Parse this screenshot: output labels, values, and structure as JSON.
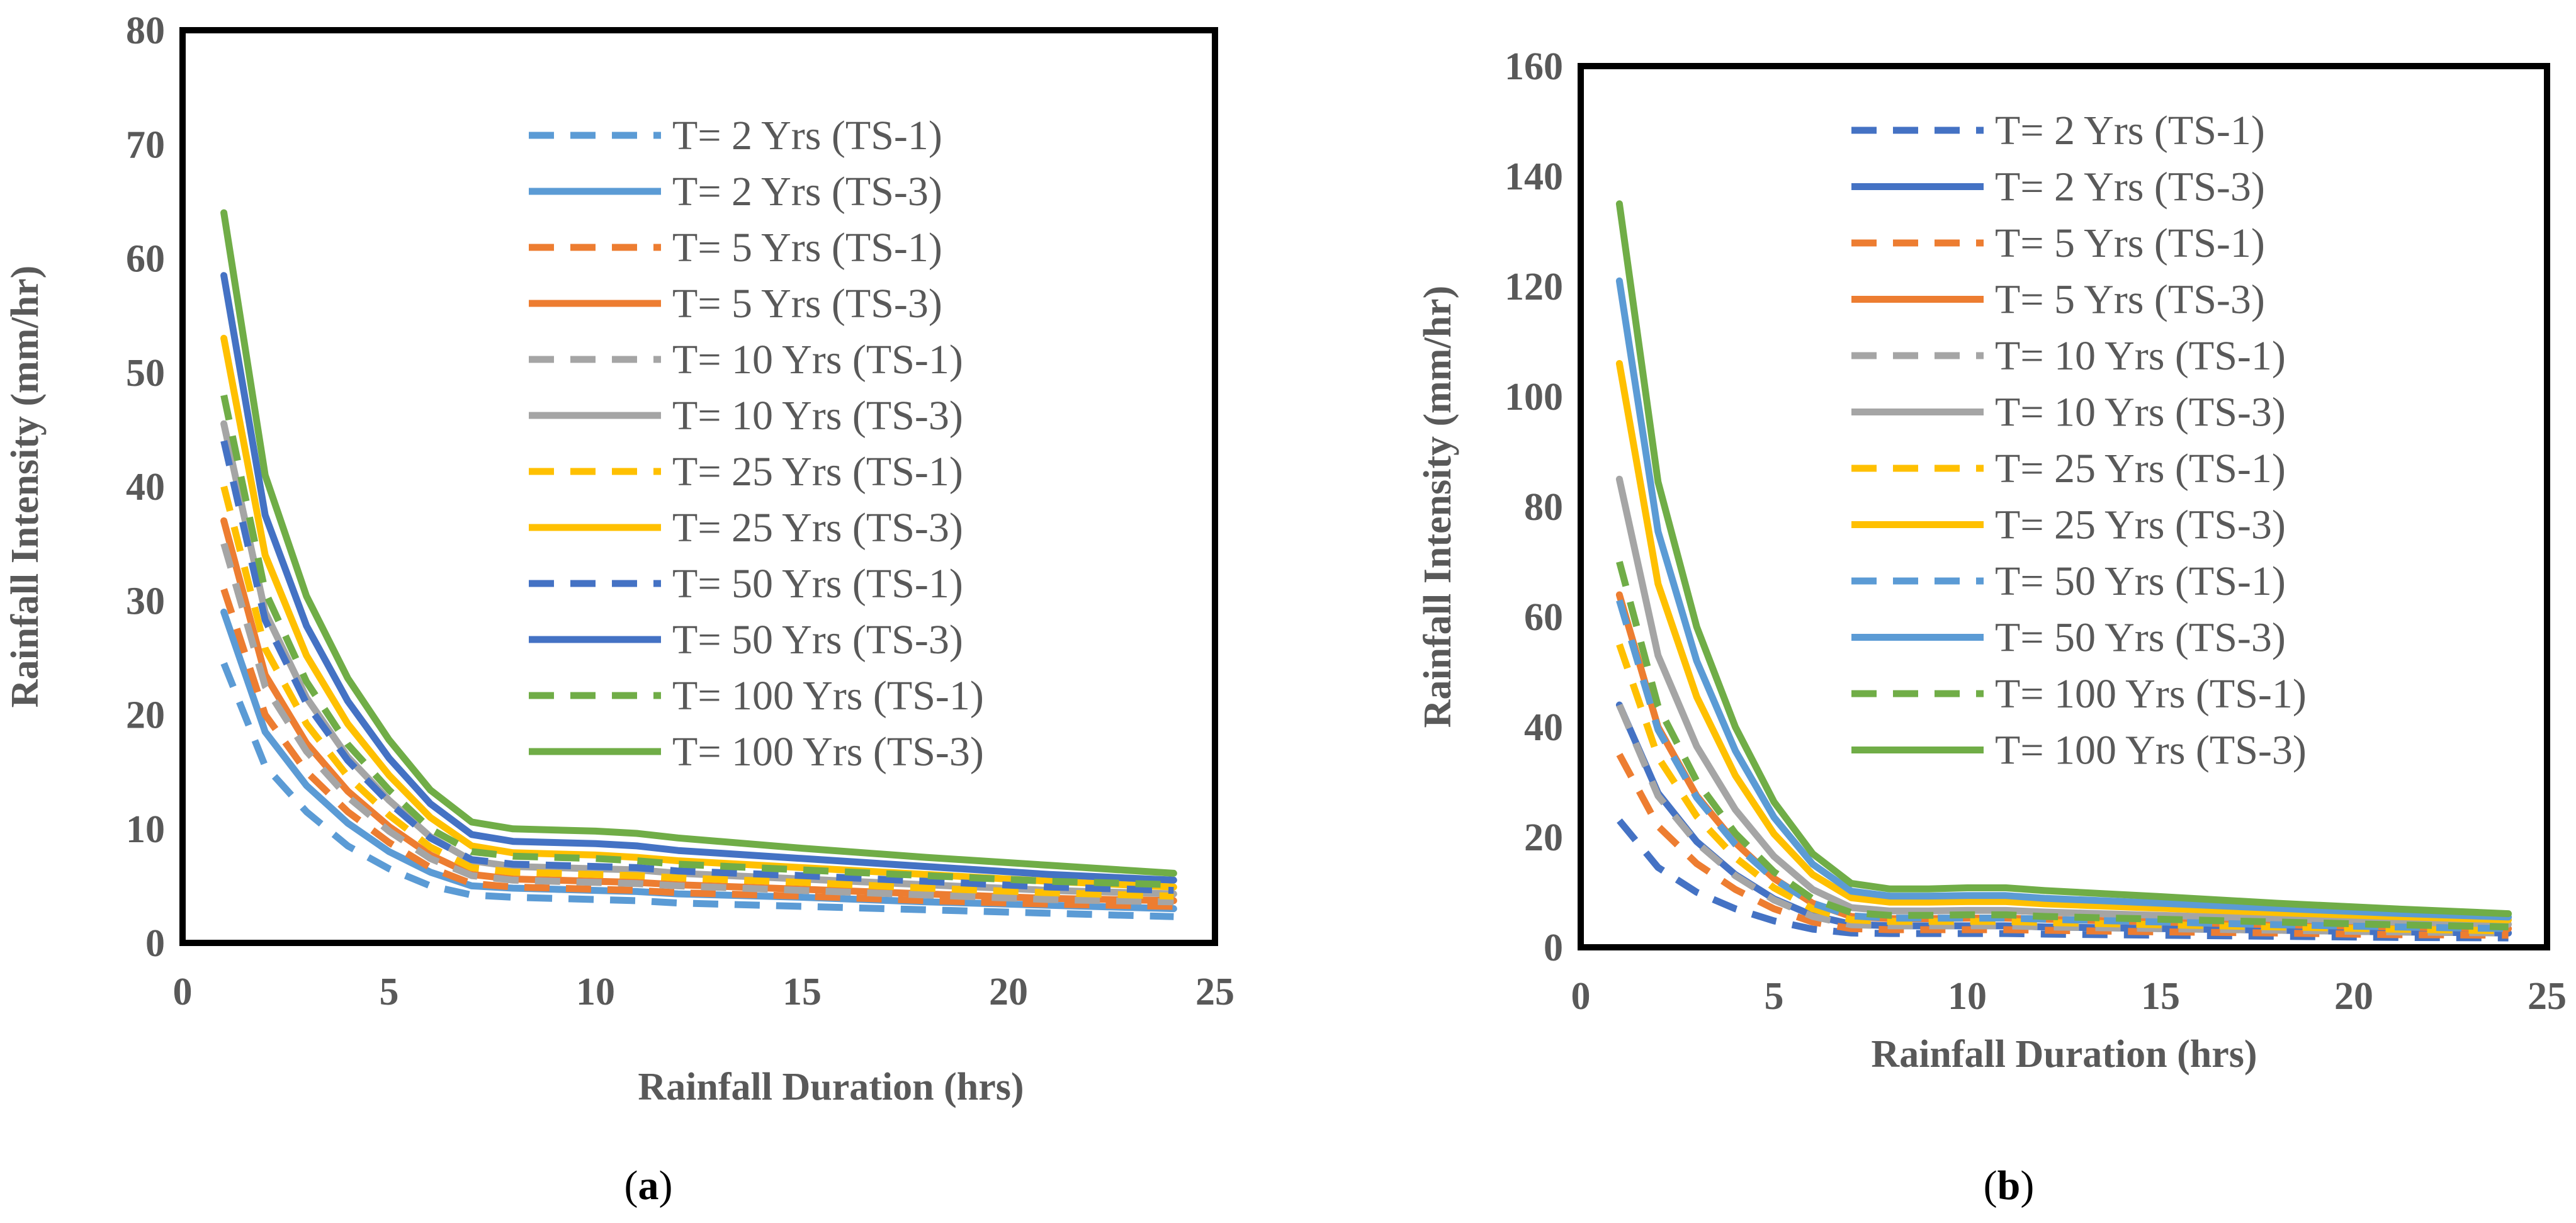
{
  "chart_data": [
    {
      "type": "line",
      "caption": "(a)",
      "caption_letter": "a",
      "title": "",
      "xlabel": "Rainfall Duration (hrs)",
      "ylabel": "Rainfall Intensity (mm/hr)",
      "xlim": [
        0,
        25
      ],
      "ylim": [
        0,
        80
      ],
      "x_ticks": [
        "0",
        "5",
        "10",
        "15",
        "20",
        "25"
      ],
      "y_ticks": [
        "0",
        "10",
        "20",
        "30",
        "40",
        "50",
        "60",
        "70",
        "80"
      ],
      "grid": false,
      "legend_position": "top-right",
      "x": [
        1,
        2,
        3,
        4,
        5,
        6,
        7,
        8,
        9,
        10,
        11,
        12,
        15,
        18,
        21,
        24
      ],
      "series": [
        {
          "name": "T= 2 Yrs (TS-1)",
          "color": "#5B9BD5",
          "dash": "dashed",
          "values": [
            24.5,
            15.5,
            11.5,
            8.5,
            6.5,
            5.0,
            4.2,
            4.0,
            3.9,
            3.8,
            3.7,
            3.5,
            3.2,
            2.9,
            2.6,
            2.3
          ]
        },
        {
          "name": "T= 2 Yrs (TS-3)",
          "color": "#5B9BD5",
          "dash": "solid",
          "values": [
            29.0,
            18.5,
            13.8,
            10.5,
            8.0,
            6.2,
            5.0,
            4.8,
            4.7,
            4.6,
            4.5,
            4.3,
            4.0,
            3.6,
            3.3,
            3.0
          ]
        },
        {
          "name": "T= 5 Yrs (TS-1)",
          "color": "#ED7D31",
          "dash": "dashed",
          "values": [
            31.0,
            20.0,
            15.0,
            11.5,
            8.8,
            6.6,
            5.2,
            4.9,
            4.8,
            4.7,
            4.6,
            4.4,
            4.1,
            3.7,
            3.4,
            3.2
          ]
        },
        {
          "name": "T= 5 Yrs (TS-3)",
          "color": "#ED7D31",
          "dash": "solid",
          "values": [
            37.0,
            23.5,
            17.5,
            13.3,
            10.2,
            7.7,
            6.0,
            5.6,
            5.5,
            5.4,
            5.3,
            5.1,
            4.7,
            4.3,
            3.9,
            3.7
          ]
        },
        {
          "name": "T= 10 Yrs (TS-1)",
          "color": "#A5A5A5",
          "dash": "dashed",
          "values": [
            35.0,
            22.5,
            16.8,
            12.8,
            9.8,
            7.4,
            5.9,
            5.5,
            5.4,
            5.3,
            5.2,
            5.0,
            4.6,
            4.2,
            3.8,
            3.6
          ]
        },
        {
          "name": "T= 10 Yrs (TS-3)",
          "color": "#A5A5A5",
          "dash": "solid",
          "values": [
            45.5,
            29.0,
            21.5,
            16.3,
            12.5,
            9.3,
            7.2,
            6.7,
            6.6,
            6.5,
            6.4,
            6.1,
            5.6,
            5.1,
            4.6,
            4.3
          ]
        },
        {
          "name": "T= 25 Yrs (TS-1)",
          "color": "#FFC000",
          "dash": "dashed",
          "values": [
            40.0,
            25.8,
            19.2,
            14.6,
            11.2,
            8.4,
            6.6,
            6.2,
            6.1,
            6.0,
            5.9,
            5.7,
            5.3,
            4.8,
            4.4,
            4.1
          ]
        },
        {
          "name": "T= 25 Yrs (TS-3)",
          "color": "#FFC000",
          "dash": "solid",
          "values": [
            53.0,
            34.0,
            25.2,
            19.2,
            14.7,
            11.0,
            8.5,
            7.9,
            7.8,
            7.7,
            7.5,
            7.2,
            6.6,
            6.0,
            5.4,
            4.9
          ]
        },
        {
          "name": "T= 50 Yrs (TS-1)",
          "color": "#4472C4",
          "dash": "dashed",
          "values": [
            44.0,
            28.3,
            21.0,
            16.0,
            12.3,
            9.2,
            7.3,
            6.9,
            6.8,
            6.7,
            6.6,
            6.3,
            5.9,
            5.4,
            4.9,
            4.6
          ]
        },
        {
          "name": "T= 50 Yrs (TS-3)",
          "color": "#4472C4",
          "dash": "solid",
          "values": [
            58.5,
            37.5,
            27.8,
            21.2,
            16.2,
            12.2,
            9.5,
            8.9,
            8.8,
            8.7,
            8.5,
            8.1,
            7.4,
            6.7,
            6.0,
            5.5
          ]
        },
        {
          "name": "T= 100 Yrs (TS-1)",
          "color": "#70AD47",
          "dash": "dashed",
          "values": [
            48.0,
            30.8,
            22.9,
            17.4,
            13.4,
            10.0,
            8.0,
            7.6,
            7.5,
            7.4,
            7.2,
            6.9,
            6.4,
            5.9,
            5.4,
            5.1
          ]
        },
        {
          "name": "T= 100 Yrs (TS-3)",
          "color": "#70AD47",
          "dash": "solid",
          "values": [
            64.0,
            41.0,
            30.4,
            23.2,
            17.8,
            13.4,
            10.6,
            10.0,
            9.9,
            9.8,
            9.6,
            9.2,
            8.3,
            7.5,
            6.8,
            6.1
          ]
        }
      ]
    },
    {
      "type": "line",
      "caption": "(b)",
      "caption_letter": "b",
      "title": "",
      "xlabel": "Rainfall Duration (hrs)",
      "ylabel": "Rainfall Intensity (mm/hr)",
      "xlim": [
        0,
        25
      ],
      "ylim": [
        0,
        160
      ],
      "x_ticks": [
        "0",
        "5",
        "10",
        "15",
        "20",
        "25"
      ],
      "y_ticks": [
        "0",
        "20",
        "40",
        "60",
        "80",
        "100",
        "120",
        "140",
        "160"
      ],
      "grid": false,
      "legend_position": "top-right",
      "x": [
        1,
        2,
        3,
        4,
        5,
        6,
        7,
        8,
        9,
        10,
        11,
        12,
        15,
        18,
        21,
        24
      ],
      "series": [
        {
          "name": "T= 2 Yrs (TS-1)",
          "color": "#4472C4",
          "dash": "dashed",
          "values": [
            23.0,
            14.5,
            10.0,
            7.0,
            4.8,
            3.3,
            2.6,
            2.5,
            2.5,
            2.5,
            2.5,
            2.4,
            2.2,
            2.0,
            1.8,
            1.7
          ]
        },
        {
          "name": "T= 2 Yrs (TS-3)",
          "color": "#4472C4",
          "dash": "solid",
          "values": [
            44.0,
            28.0,
            19.2,
            13.2,
            8.8,
            5.8,
            4.2,
            3.9,
            3.9,
            3.9,
            3.9,
            3.7,
            3.4,
            3.1,
            2.8,
            2.6
          ]
        },
        {
          "name": "T= 5 Yrs (TS-1)",
          "color": "#ED7D31",
          "dash": "dashed",
          "values": [
            35.0,
            22.0,
            15.2,
            10.5,
            7.0,
            4.6,
            3.4,
            3.2,
            3.2,
            3.2,
            3.2,
            3.1,
            2.8,
            2.6,
            2.3,
            2.2
          ]
        },
        {
          "name": "T= 5 Yrs (TS-3)",
          "color": "#ED7D31",
          "dash": "solid",
          "values": [
            64.0,
            40.0,
            27.5,
            19.0,
            12.5,
            8.0,
            5.6,
            5.2,
            5.2,
            5.3,
            5.3,
            5.1,
            4.6,
            4.1,
            3.7,
            3.4
          ]
        },
        {
          "name": "T= 10 Yrs (TS-1)",
          "color": "#A5A5A5",
          "dash": "dashed",
          "values": [
            44.0,
            27.5,
            19.0,
            13.0,
            8.6,
            5.6,
            4.1,
            3.9,
            3.9,
            3.9,
            3.9,
            3.7,
            3.4,
            3.1,
            2.8,
            2.6
          ]
        },
        {
          "name": "T= 10 Yrs (TS-3)",
          "color": "#A5A5A5",
          "dash": "solid",
          "values": [
            85.0,
            53.0,
            36.5,
            25.0,
            16.5,
            10.5,
            7.2,
            6.6,
            6.6,
            6.7,
            6.7,
            6.4,
            5.8,
            5.2,
            4.6,
            4.2
          ]
        },
        {
          "name": "T= 25 Yrs (TS-1)",
          "color": "#FFC000",
          "dash": "dashed",
          "values": [
            55.0,
            34.5,
            23.8,
            16.3,
            10.8,
            7.0,
            5.0,
            4.7,
            4.7,
            4.7,
            4.7,
            4.5,
            4.1,
            3.7,
            3.3,
            3.0
          ]
        },
        {
          "name": "T= 25 Yrs (TS-3)",
          "color": "#FFC000",
          "dash": "solid",
          "values": [
            106.0,
            66.0,
            45.5,
            31.2,
            20.6,
            13.2,
            9.0,
            8.2,
            8.2,
            8.3,
            8.3,
            7.9,
            7.1,
            6.3,
            5.6,
            5.0
          ]
        },
        {
          "name": "T= 50 Yrs (TS-1)",
          "color": "#5B9BD5",
          "dash": "dashed",
          "values": [
            63.0,
            39.5,
            27.2,
            18.7,
            12.4,
            8.0,
            5.7,
            5.3,
            5.3,
            5.3,
            5.3,
            5.1,
            4.6,
            4.1,
            3.7,
            3.4
          ]
        },
        {
          "name": "T= 50 Yrs (TS-3)",
          "color": "#5B9BD5",
          "dash": "solid",
          "values": [
            121.0,
            75.5,
            52.0,
            35.7,
            23.6,
            15.1,
            10.2,
            9.3,
            9.3,
            9.4,
            9.4,
            8.9,
            8.0,
            7.1,
            6.2,
            5.5
          ]
        },
        {
          "name": "T= 100 Yrs (TS-1)",
          "color": "#70AD47",
          "dash": "dashed",
          "values": [
            70.0,
            43.8,
            30.2,
            20.7,
            13.7,
            8.8,
            6.3,
            5.8,
            5.8,
            5.9,
            5.9,
            5.6,
            5.1,
            4.6,
            4.1,
            3.7
          ]
        },
        {
          "name": "T= 100 Yrs (TS-3)",
          "color": "#70AD47",
          "dash": "solid",
          "values": [
            135.0,
            84.5,
            58.2,
            40.0,
            26.4,
            17.0,
            11.6,
            10.6,
            10.6,
            10.8,
            10.8,
            10.3,
            9.2,
            8.0,
            7.0,
            6.1
          ]
        }
      ]
    }
  ]
}
